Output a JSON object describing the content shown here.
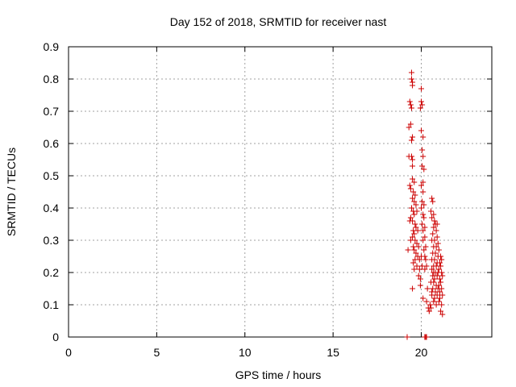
{
  "chart_data": {
    "type": "scatter",
    "title": "Day 152 of 2018, SRMTID for receiver nast",
    "xlabel": "GPS time / hours",
    "ylabel": "SRMTID / TECUs",
    "xlim": [
      0,
      24
    ],
    "ylim": [
      0,
      0.9
    ],
    "xticks": [
      0,
      5,
      10,
      15,
      20
    ],
    "yticks": [
      0,
      0.1,
      0.2,
      0.3,
      0.4,
      0.5,
      0.6,
      0.7,
      0.8,
      0.9
    ],
    "xtick_labels": [
      "0",
      "5",
      "10",
      "15",
      "20"
    ],
    "ytick_labels": [
      "0",
      "0.1",
      "0.2",
      "0.3",
      "0.4",
      "0.5",
      "0.6",
      "0.7",
      "0.8",
      "0.9"
    ],
    "grid": true,
    "marker": "plus",
    "color": "#cc0000",
    "points": [
      [
        19.45,
        0.82
      ],
      [
        19.45,
        0.8
      ],
      [
        19.5,
        0.79
      ],
      [
        19.5,
        0.78
      ],
      [
        19.35,
        0.73
      ],
      [
        19.4,
        0.72
      ],
      [
        19.45,
        0.71
      ],
      [
        19.3,
        0.65
      ],
      [
        19.4,
        0.66
      ],
      [
        19.45,
        0.61
      ],
      [
        19.5,
        0.62
      ],
      [
        19.45,
        0.56
      ],
      [
        19.5,
        0.55
      ],
      [
        19.3,
        0.56
      ],
      [
        19.5,
        0.53
      ],
      [
        19.5,
        0.49
      ],
      [
        19.35,
        0.47
      ],
      [
        19.4,
        0.46
      ],
      [
        19.6,
        0.48
      ],
      [
        19.55,
        0.45
      ],
      [
        19.65,
        0.44
      ],
      [
        19.5,
        0.43
      ],
      [
        19.6,
        0.42
      ],
      [
        19.7,
        0.41
      ],
      [
        19.45,
        0.4
      ],
      [
        19.55,
        0.39
      ],
      [
        19.6,
        0.38
      ],
      [
        19.75,
        0.39
      ],
      [
        19.4,
        0.37
      ],
      [
        19.5,
        0.36
      ],
      [
        19.35,
        0.36
      ],
      [
        19.65,
        0.35
      ],
      [
        19.7,
        0.34
      ],
      [
        19.55,
        0.33
      ],
      [
        19.6,
        0.32
      ],
      [
        19.8,
        0.33
      ],
      [
        19.5,
        0.31
      ],
      [
        19.65,
        0.3
      ],
      [
        19.75,
        0.29
      ],
      [
        19.4,
        0.3
      ],
      [
        19.55,
        0.28
      ],
      [
        19.85,
        0.28
      ],
      [
        19.25,
        0.27
      ],
      [
        19.6,
        0.27
      ],
      [
        19.7,
        0.26
      ],
      [
        19.8,
        0.25
      ],
      [
        19.65,
        0.24
      ],
      [
        19.9,
        0.24
      ],
      [
        19.55,
        0.23
      ],
      [
        19.75,
        0.22
      ],
      [
        19.6,
        0.21
      ],
      [
        19.9,
        0.21
      ],
      [
        19.85,
        0.19
      ],
      [
        19.5,
        0.15
      ],
      [
        20.0,
        0.25
      ],
      [
        20.05,
        0.22
      ],
      [
        19.95,
        0.18
      ],
      [
        19.95,
        0.16
      ],
      [
        20.0,
        0.77
      ],
      [
        20.0,
        0.73
      ],
      [
        20.05,
        0.72
      ],
      [
        19.95,
        0.71
      ],
      [
        20.0,
        0.64
      ],
      [
        20.1,
        0.62
      ],
      [
        20.05,
        0.58
      ],
      [
        20.1,
        0.56
      ],
      [
        20.05,
        0.53
      ],
      [
        20.15,
        0.52
      ],
      [
        20.1,
        0.48
      ],
      [
        20.0,
        0.47
      ],
      [
        20.1,
        0.45
      ],
      [
        20.05,
        0.42
      ],
      [
        20.15,
        0.41
      ],
      [
        20.0,
        0.4
      ],
      [
        20.1,
        0.38
      ],
      [
        20.15,
        0.37
      ],
      [
        20.05,
        0.35
      ],
      [
        20.2,
        0.34
      ],
      [
        20.1,
        0.33
      ],
      [
        20.2,
        0.31
      ],
      [
        20.1,
        0.3
      ],
      [
        20.25,
        0.28
      ],
      [
        20.15,
        0.27
      ],
      [
        20.2,
        0.25
      ],
      [
        20.25,
        0.24
      ],
      [
        20.3,
        0.22
      ],
      [
        20.2,
        0.21
      ],
      [
        20.1,
        0.12
      ],
      [
        20.3,
        0.11
      ],
      [
        20.35,
        0.15
      ],
      [
        20.4,
        0.09
      ],
      [
        20.45,
        0.08
      ],
      [
        20.5,
        0.1
      ],
      [
        20.6,
        0.43
      ],
      [
        20.65,
        0.42
      ],
      [
        20.55,
        0.39
      ],
      [
        20.7,
        0.38
      ],
      [
        20.6,
        0.37
      ],
      [
        20.75,
        0.36
      ],
      [
        20.8,
        0.35
      ],
      [
        20.9,
        0.35
      ],
      [
        20.7,
        0.34
      ],
      [
        20.85,
        0.33
      ],
      [
        20.65,
        0.32
      ],
      [
        20.9,
        0.31
      ],
      [
        20.6,
        0.3
      ],
      [
        20.75,
        0.3
      ],
      [
        20.95,
        0.29
      ],
      [
        20.7,
        0.28
      ],
      [
        20.85,
        0.28
      ],
      [
        21.0,
        0.27
      ],
      [
        20.65,
        0.26
      ],
      [
        20.8,
        0.26
      ],
      [
        20.95,
        0.25
      ],
      [
        21.1,
        0.25
      ],
      [
        20.6,
        0.24
      ],
      [
        20.75,
        0.24
      ],
      [
        20.9,
        0.23
      ],
      [
        21.05,
        0.23
      ],
      [
        21.15,
        0.24
      ],
      [
        20.7,
        0.22
      ],
      [
        20.85,
        0.22
      ],
      [
        21.0,
        0.21
      ],
      [
        21.1,
        0.22
      ],
      [
        20.6,
        0.21
      ],
      [
        20.8,
        0.2
      ],
      [
        20.95,
        0.2
      ],
      [
        21.15,
        0.2
      ],
      [
        20.65,
        0.19
      ],
      [
        20.75,
        0.18
      ],
      [
        20.9,
        0.19
      ],
      [
        21.05,
        0.18
      ],
      [
        21.2,
        0.19
      ],
      [
        20.55,
        0.17
      ],
      [
        20.7,
        0.17
      ],
      [
        20.85,
        0.16
      ],
      [
        21.0,
        0.16
      ],
      [
        21.1,
        0.17
      ],
      [
        20.65,
        0.15
      ],
      [
        20.8,
        0.14
      ],
      [
        20.95,
        0.15
      ],
      [
        21.15,
        0.15
      ],
      [
        20.6,
        0.13
      ],
      [
        20.75,
        0.12
      ],
      [
        20.9,
        0.13
      ],
      [
        21.05,
        0.12
      ],
      [
        21.2,
        0.13
      ],
      [
        20.7,
        0.11
      ],
      [
        20.85,
        0.1
      ],
      [
        21.0,
        0.11
      ],
      [
        21.15,
        0.1
      ],
      [
        20.55,
        0.09
      ],
      [
        21.1,
        0.08
      ],
      [
        21.2,
        0.07
      ],
      [
        20.6,
        0.14
      ],
      [
        21.05,
        0.14
      ],
      [
        20.7,
        0.2
      ],
      [
        19.2,
        0.0
      ],
      [
        19.2,
        0.0
      ],
      [
        20.2,
        0.0
      ],
      [
        20.25,
        0.0
      ],
      [
        20.3,
        0.0
      ]
    ]
  }
}
